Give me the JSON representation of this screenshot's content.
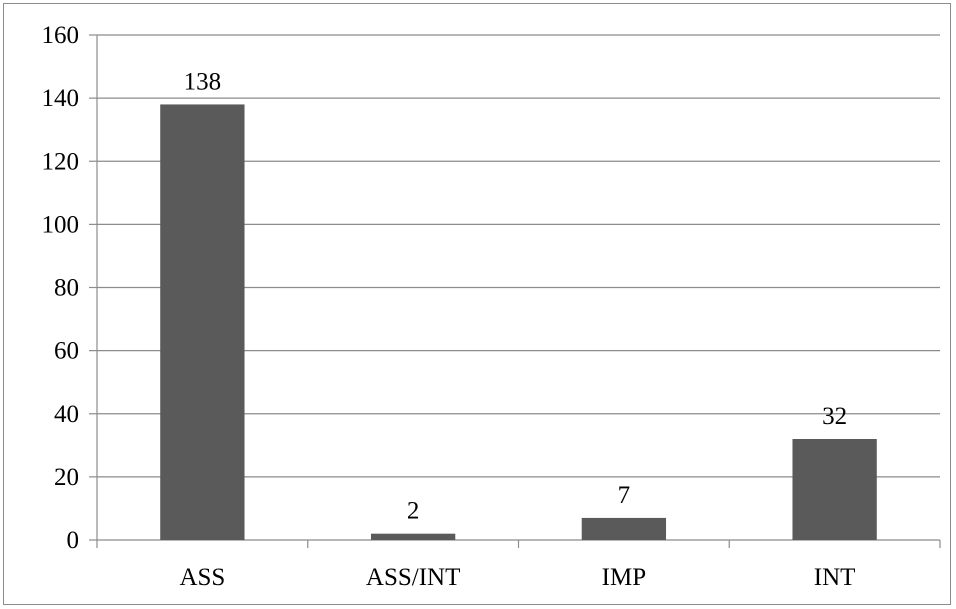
{
  "chart_data": {
    "type": "bar",
    "categories": [
      "ASS",
      "ASS/INT",
      "IMP",
      "INT"
    ],
    "values": [
      138,
      2,
      7,
      32
    ],
    "data_labels": [
      "138",
      "2",
      "7",
      "32"
    ],
    "title": "",
    "xlabel": "",
    "ylabel": "",
    "ylim": [
      0,
      160
    ],
    "yticks": [
      0,
      20,
      40,
      60,
      80,
      100,
      120,
      140,
      160
    ],
    "grid": true,
    "legend": "none",
    "colors": {
      "bar": "#5a5a5a",
      "grid": "#8c8c8c",
      "axis": "#8c8c8c",
      "text": "#000000"
    }
  }
}
